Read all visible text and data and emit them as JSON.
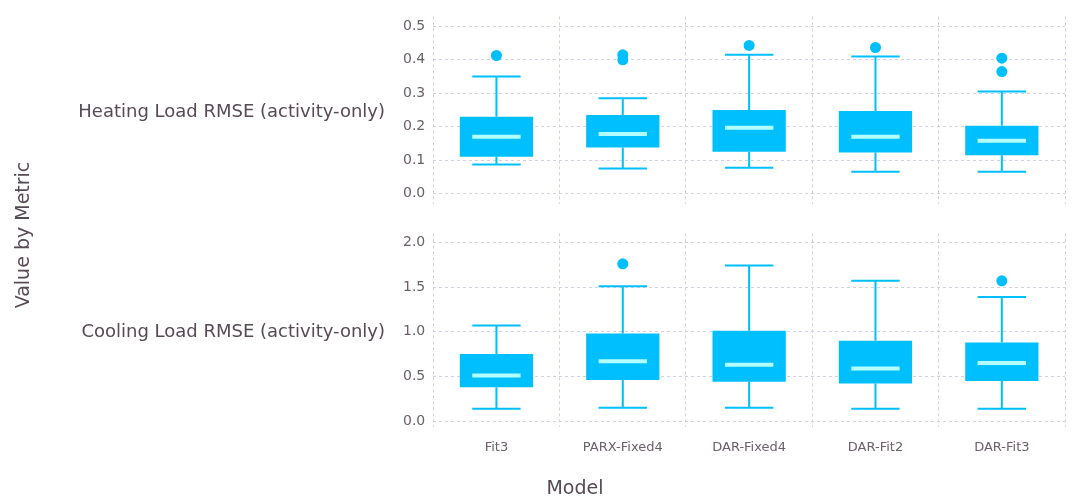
{
  "chart_data": [
    {
      "type": "box",
      "ylabel": "Heating Load RMSE (activity-only)",
      "annotations": [
        "Value by Metric"
      ],
      "color": "#00bfff",
      "boxes": [
        {
          "low": 0.087,
          "q1": 0.11,
          "median": 0.17,
          "q3": 0.23,
          "high": 0.35,
          "outliers": [
            0.413
          ]
        },
        {
          "low": 0.075,
          "q1": 0.138,
          "median": 0.178,
          "q3": 0.235,
          "high": 0.285,
          "outliers": [
            0.4,
            0.415
          ]
        },
        {
          "low": 0.077,
          "q1": 0.125,
          "median": 0.197,
          "q3": 0.25,
          "high": 0.415,
          "outliers": [
            0.443
          ]
        },
        {
          "low": 0.065,
          "q1": 0.123,
          "median": 0.17,
          "q3": 0.247,
          "high": 0.41,
          "outliers": [
            0.437
          ]
        },
        {
          "low": 0.065,
          "q1": 0.115,
          "median": 0.158,
          "q3": 0.203,
          "high": 0.305,
          "outliers": [
            0.365,
            0.405
          ]
        }
      ],
      "ylim": [
        -0.03,
        0.53
      ],
      "yticks": [
        {
          "value": 0,
          "label": "0.0"
        },
        0.1,
        0.2,
        0.3,
        0.4,
        0.5
      ],
      "grid": true,
      "tick_labels": "y"
    },
    {
      "type": "box",
      "ylabel": "Cooling Load RMSE (activity-only)",
      "xlabel": "Model",
      "categories": [
        "Fit3",
        "PARX-Fixed4",
        "DAR-Fixed4",
        "DAR-Fit2",
        "DAR-Fit3"
      ],
      "color": "#00bfff",
      "boxes": [
        {
          "low": 0.14,
          "q1": 0.38,
          "median": 0.51,
          "q3": 0.75,
          "high": 1.07
        },
        {
          "low": 0.15,
          "q1": 0.46,
          "median": 0.67,
          "q3": 0.98,
          "high": 1.51,
          "outliers": [
            1.76
          ]
        },
        {
          "low": 0.15,
          "q1": 0.44,
          "median": 0.63,
          "q3": 1.01,
          "high": 1.74
        },
        {
          "low": 0.14,
          "q1": 0.42,
          "median": 0.59,
          "q3": 0.9,
          "high": 1.57
        },
        {
          "low": 0.14,
          "q1": 0.45,
          "median": 0.65,
          "q3": 0.88,
          "high": 1.39,
          "outliers": [
            1.57
          ]
        }
      ],
      "ylim": [
        -0.07,
        2.1
      ],
      "yticks": [
        {
          "value": 0,
          "label": "0.0"
        },
        {
          "value": 0.5,
          "label": "0.5"
        },
        {
          "value": 1,
          "label": "1.0"
        },
        {
          "value": 1.5,
          "label": "1.5"
        },
        {
          "value": 2,
          "label": "2.0"
        }
      ],
      "grid": true
    }
  ]
}
